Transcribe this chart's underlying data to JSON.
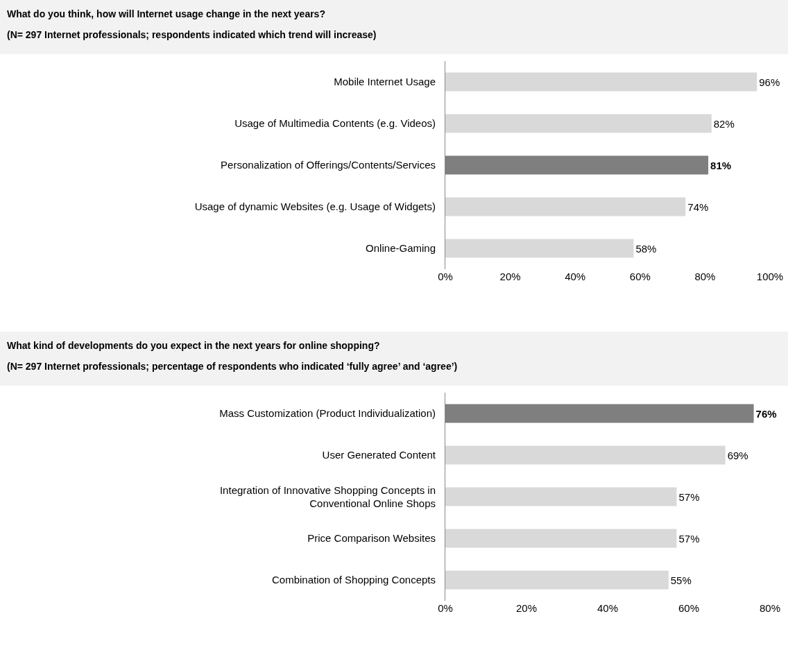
{
  "chart_data": [
    {
      "type": "bar",
      "orientation": "horizontal",
      "title": "What do you think, how will Internet usage change in the next years?",
      "subtitle": "(N= 297 Internet professionals; respondents indicated which trend will increase)",
      "categories": [
        "Mobile Internet Usage",
        "Usage of Multimedia Contents (e.g. Videos)",
        "Personalization of Offerings/Contents/Services",
        "Usage of dynamic Websites (e.g. Usage of Widgets)",
        "Online-Gaming"
      ],
      "values": [
        96,
        82,
        81,
        74,
        58
      ],
      "colors": [
        "#d9d9d9",
        "#d9d9d9",
        "#7f7f7f",
        "#d9d9d9",
        "#d9d9d9"
      ],
      "value_labels": [
        "96%",
        "82%",
        "81%",
        "74%",
        "58%"
      ],
      "xlim": [
        0,
        100
      ],
      "xticks": [
        {
          "value": 0,
          "label": "0%"
        },
        {
          "value": 20,
          "label": "20%"
        },
        {
          "value": 40,
          "label": "40%"
        },
        {
          "value": 60,
          "label": "60%"
        },
        {
          "value": 80,
          "label": "80%"
        },
        {
          "value": 100,
          "label": "100%"
        }
      ]
    },
    {
      "type": "bar",
      "orientation": "horizontal",
      "title": "What kind of developments do you expect in the next years for online shopping?",
      "subtitle": "(N= 297 Internet professionals; percentage of respondents who indicated ‘fully agree’ and ‘agree’)",
      "categories": [
        "Mass Customization (Product Individualization)",
        "User Generated Content",
        "Integration of Innovative Shopping Concepts in Conventional Online Shops",
        "Price Comparison Websites",
        "Combination of Shopping Concepts"
      ],
      "values": [
        76,
        69,
        57,
        57,
        55
      ],
      "colors": [
        "#7f7f7f",
        "#d9d9d9",
        "#d9d9d9",
        "#d9d9d9",
        "#d9d9d9"
      ],
      "value_labels": [
        "76%",
        "69%",
        "57%",
        "57%",
        "55%"
      ],
      "xlim": [
        0,
        80
      ],
      "xticks": [
        {
          "value": 0,
          "label": "0%"
        },
        {
          "value": 20,
          "label": "20%"
        },
        {
          "value": 40,
          "label": "40%"
        },
        {
          "value": 60,
          "label": "60%"
        },
        {
          "value": 80,
          "label": "80%"
        }
      ]
    }
  ]
}
